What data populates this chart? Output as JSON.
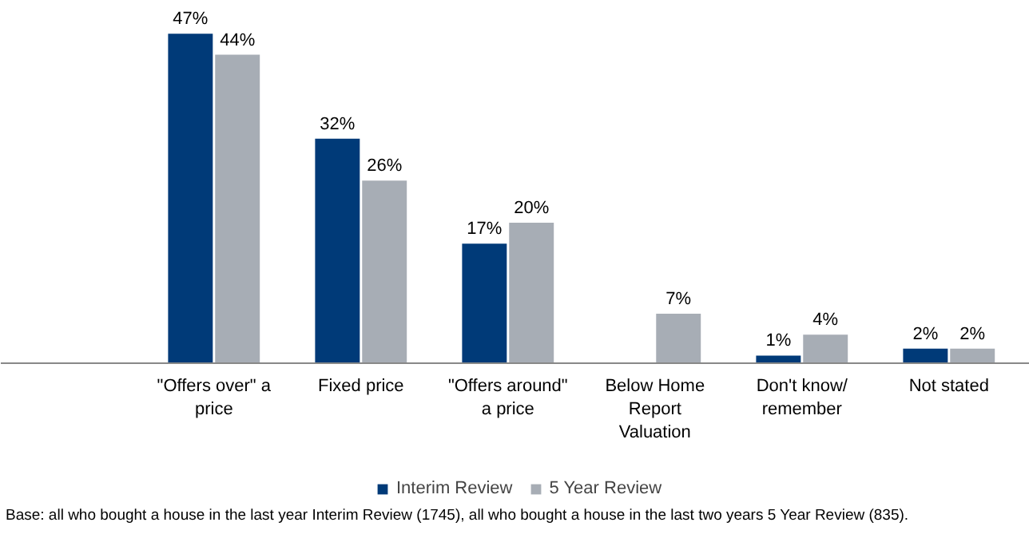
{
  "chart_data": {
    "type": "bar",
    "categories": [
      "\"Offers over\" a\nprice",
      "Fixed price",
      "\"Offers around\"\na price",
      "Below Home\nReport\nValuation",
      "Don't know/\nremember",
      "Not stated"
    ],
    "series": [
      {
        "name": "Interim Review",
        "color": "#003a78",
        "values": [
          47,
          32,
          17,
          null,
          1,
          2
        ],
        "value_labels": [
          "47%",
          "32%",
          "17%",
          null,
          "1%",
          "2%"
        ]
      },
      {
        "name": "5 Year Review",
        "color": "#a7adb5",
        "values": [
          44,
          26,
          20,
          7,
          4,
          2
        ],
        "value_labels": [
          "44%",
          "26%",
          "20%",
          "7%",
          "4%",
          "2%"
        ]
      }
    ],
    "legend": "bottom",
    "annotations": [
      "Base: all who bought a house in the last year Interim Review (1745), all who bought a house in the last two years 5 Year Review (835)."
    ]
  }
}
